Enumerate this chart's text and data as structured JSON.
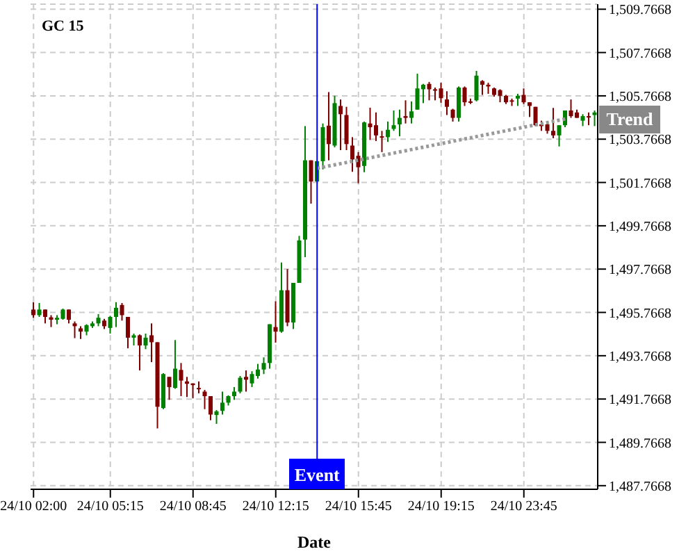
{
  "chart_data": {
    "type": "candlestick",
    "title": "GC 15",
    "xlabel": "Date",
    "categories": [
      "24/10 02:00",
      null,
      null,
      null,
      null,
      null,
      null,
      null,
      null,
      null,
      null,
      null,
      null,
      "24/10 05:15",
      null,
      null,
      null,
      null,
      null,
      null,
      null,
      null,
      null,
      null,
      null,
      null,
      null,
      "24/10 08:45",
      null,
      null,
      null,
      null,
      null,
      null,
      null,
      null,
      null,
      null,
      null,
      null,
      null,
      "24/10 12:15",
      null,
      null,
      null,
      null,
      null,
      null,
      null,
      null,
      null,
      null,
      null,
      null,
      null,
      "24/10 15:45",
      null,
      null,
      null,
      null,
      null,
      null,
      null,
      null,
      null,
      null,
      null,
      null,
      null,
      "24/10 19:15",
      null,
      null,
      null,
      null,
      null,
      null,
      null,
      null,
      null,
      null,
      null,
      null,
      null,
      "24/10 23:45",
      null,
      null,
      null,
      null,
      null,
      null,
      null,
      null,
      null,
      null,
      null,
      null
    ],
    "ohlc": [
      [
        1495.9,
        1496.24,
        1495.52,
        1495.64
      ],
      [
        1495.64,
        1496.2,
        1495.56,
        1495.9
      ],
      [
        1495.9,
        1495.9,
        1495.26,
        1495.56
      ],
      [
        1495.54,
        1495.64,
        1495.09,
        1495.43
      ],
      [
        1495.43,
        1495.64,
        1495.22,
        1495.52
      ],
      [
        1495.47,
        1495.94,
        1495.43,
        1495.9
      ],
      [
        1495.9,
        1495.9,
        1495.26,
        1495.43
      ],
      [
        1495.26,
        1495.35,
        1494.58,
        1495.13
      ],
      [
        1495.03,
        1495.13,
        1494.54,
        1494.88
      ],
      [
        1494.88,
        1495.22,
        1494.71,
        1495.18
      ],
      [
        1495.13,
        1495.35,
        1495.05,
        1495.26
      ],
      [
        1495.26,
        1495.69,
        1495.13,
        1495.52
      ],
      [
        1495.39,
        1495.47,
        1495.0,
        1495.13
      ],
      [
        1495.05,
        1495.6,
        1494.79,
        1495.56
      ],
      [
        1495.56,
        1496.24,
        1495.09,
        1495.98
      ],
      [
        1496.11,
        1496.2,
        1495.39,
        1495.64
      ],
      [
        1495.56,
        1495.56,
        1494.11,
        1494.6
      ],
      [
        1494.6,
        1494.79,
        1494.24,
        1494.71
      ],
      [
        1494.71,
        1494.75,
        1493.09,
        1494.24
      ],
      [
        1494.24,
        1494.79,
        1494.07,
        1494.6
      ],
      [
        1494.71,
        1495.26,
        1493.47,
        1494.39
      ],
      [
        1494.39,
        1494.39,
        1490.41,
        1491.41
      ],
      [
        1491.35,
        1492.96,
        1491.3,
        1492.92
      ],
      [
        1492.79,
        1492.79,
        1491.73,
        1492.32
      ],
      [
        1492.28,
        1494.49,
        1492.24,
        1493.17
      ],
      [
        1493.11,
        1493.43,
        1491.9,
        1492.62
      ],
      [
        1492.58,
        1492.79,
        1491.86,
        1492.47
      ],
      [
        1492.49,
        1492.49,
        1491.81,
        1492.41
      ],
      [
        1492.28,
        1492.58,
        1492.03,
        1492.24
      ],
      [
        1492.11,
        1492.19,
        1491.3,
        1491.9
      ],
      [
        1491.9,
        1491.9,
        1490.79,
        1491.05
      ],
      [
        1491.03,
        1491.26,
        1490.62,
        1491.2
      ],
      [
        1491.22,
        1492.11,
        1491.05,
        1491.6
      ],
      [
        1491.6,
        1491.94,
        1491.47,
        1491.9
      ],
      [
        1491.9,
        1492.32,
        1491.73,
        1492.11
      ],
      [
        1492.11,
        1492.83,
        1492.03,
        1492.75
      ],
      [
        1492.79,
        1493.09,
        1492.11,
        1492.66
      ],
      [
        1492.49,
        1493.05,
        1492.32,
        1492.92
      ],
      [
        1492.83,
        1493.39,
        1492.71,
        1493.13
      ],
      [
        1493.13,
        1493.69,
        1492.92,
        1493.43
      ],
      [
        1493.43,
        1495.22,
        1493.17,
        1495.22
      ],
      [
        1495.09,
        1496.28,
        1494.37,
        1494.88
      ],
      [
        1494.88,
        1498.07,
        1494.83,
        1496.79
      ],
      [
        1496.79,
        1497.77,
        1495.13,
        1495.3
      ],
      [
        1495.3,
        1497.13,
        1495.0,
        1497.13
      ],
      [
        1497.13,
        1499.3,
        1497.13,
        1499.09
      ],
      [
        1499.13,
        1504.37,
        1498.32,
        1502.79
      ],
      [
        1502.79,
        1502.79,
        1500.79,
        1501.81
      ],
      [
        1501.81,
        1502.75,
        1501.81,
        1502.75
      ],
      [
        1502.75,
        1504.49,
        1502.37,
        1504.32
      ],
      [
        1504.39,
        1505.94,
        1502.79,
        1503.54
      ],
      [
        1503.47,
        1505.77,
        1503.39,
        1505.43
      ],
      [
        1505.3,
        1505.6,
        1503.26,
        1504.92
      ],
      [
        1504.88,
        1505.26,
        1503.26,
        1503.54
      ],
      [
        1503.47,
        1503.86,
        1502.26,
        1502.83
      ],
      [
        1503.0,
        1503.17,
        1501.73,
        1502.47
      ],
      [
        1502.53,
        1504.58,
        1502.24,
        1504.54
      ],
      [
        1504.49,
        1505.22,
        1503.73,
        1504.32
      ],
      [
        1504.41,
        1505.0,
        1503.68,
        1503.94
      ],
      [
        1503.9,
        1504.15,
        1503.17,
        1503.86
      ],
      [
        1503.86,
        1504.58,
        1503.64,
        1504.2
      ],
      [
        1504.24,
        1505.09,
        1504.15,
        1504.41
      ],
      [
        1504.45,
        1505.13,
        1503.9,
        1504.75
      ],
      [
        1504.83,
        1505.56,
        1504.49,
        1504.75
      ],
      [
        1504.75,
        1505.51,
        1504.49,
        1505.05
      ],
      [
        1505.13,
        1506.79,
        1505.13,
        1506.11
      ],
      [
        1506.07,
        1506.32,
        1505.43,
        1506.28
      ],
      [
        1506.32,
        1506.41,
        1505.56,
        1506.07
      ],
      [
        1506.07,
        1506.15,
        1505.56,
        1506.02
      ],
      [
        1506.11,
        1506.37,
        1505.45,
        1505.66
      ],
      [
        1505.6,
        1505.98,
        1504.88,
        1505.26
      ],
      [
        1505.13,
        1505.17,
        1504.58,
        1504.75
      ],
      [
        1504.75,
        1506.2,
        1504.58,
        1506.15
      ],
      [
        1506.15,
        1506.2,
        1505.3,
        1505.47
      ],
      [
        1505.51,
        1505.64,
        1505.39,
        1505.47
      ],
      [
        1505.56,
        1506.92,
        1505.51,
        1506.7
      ],
      [
        1506.45,
        1506.49,
        1505.81,
        1506.28
      ],
      [
        1506.28,
        1506.37,
        1505.86,
        1506.2
      ],
      [
        1506.11,
        1506.15,
        1505.73,
        1505.81
      ],
      [
        1506.03,
        1506.07,
        1505.47,
        1505.77
      ],
      [
        1505.77,
        1505.81,
        1505.39,
        1505.47
      ],
      [
        1505.56,
        1505.64,
        1505.3,
        1505.51
      ],
      [
        1505.64,
        1505.86,
        1505.3,
        1505.77
      ],
      [
        1505.81,
        1506.11,
        1505.39,
        1505.47
      ],
      [
        1505.47,
        1505.47,
        1504.79,
        1505.3
      ],
      [
        1505.26,
        1505.26,
        1504.37,
        1504.41
      ],
      [
        1504.45,
        1504.62,
        1504.15,
        1504.37
      ],
      [
        1504.45,
        1504.58,
        1504.02,
        1504.15
      ],
      [
        1504.15,
        1505.21,
        1503.81,
        1503.94
      ],
      [
        1503.94,
        1504.41,
        1503.43,
        1504.41
      ],
      [
        1504.41,
        1505.09,
        1504.32,
        1505.09
      ],
      [
        1505.09,
        1505.6,
        1504.75,
        1504.83
      ],
      [
        1505.0,
        1505.13,
        1504.75,
        1504.75
      ],
      [
        1504.62,
        1504.92,
        1504.37,
        1504.83
      ],
      [
        1504.83,
        1505.0,
        1504.41,
        1504.79
      ],
      [
        1504.88,
        1505.09,
        1504.37,
        1505.0
      ]
    ],
    "colors": [
      "#800000",
      "#008000",
      "#800000",
      "#800000",
      "#008000",
      "#008000",
      "#800000",
      "#800000",
      "#800000",
      "#008000",
      "#008000",
      "#008000",
      "#800000",
      "#008000",
      "#008000",
      "#800000",
      "#800000",
      "#008000",
      "#800000",
      "#008000",
      "#800000",
      "#800000",
      "#008000",
      "#800000",
      "#008000",
      "#800000",
      "#800000",
      "#800000",
      "#800000",
      "#800000",
      "#800000",
      "#008000",
      "#008000",
      "#008000",
      "#008000",
      "#008000",
      "#800000",
      "#008000",
      "#008000",
      "#008000",
      "#008000",
      "#800000",
      "#008000",
      "#800000",
      "#008000",
      "#008000",
      "#008000",
      "#800000",
      "#008000",
      "#008000",
      "#800000",
      "#008000",
      "#800000",
      "#800000",
      "#800000",
      "#800000",
      "#008000",
      "#800000",
      "#800000",
      "#800000",
      "#008000",
      "#008000",
      "#008000",
      "#800000",
      "#008000",
      "#008000",
      "#008000",
      "#800000",
      "#800000",
      "#800000",
      "#800000",
      "#800000",
      "#008000",
      "#800000",
      "#800000",
      "#008000",
      "#800000",
      "#800000",
      "#800000",
      "#800000",
      "#800000",
      "#800000",
      "#008000",
      "#800000",
      "#800000",
      "#800000",
      "#800000",
      "#800000",
      "#800000",
      "#008000",
      "#008000",
      "#800000",
      "#800000",
      "#008000",
      "#800000",
      "#008000"
    ],
    "series": [
      {
        "type": "line",
        "name": "Trend",
        "color": "#999999",
        "line_style": "dotted",
        "values": [
          null,
          null,
          null,
          null,
          null,
          null,
          null,
          null,
          null,
          null,
          null,
          null,
          null,
          null,
          null,
          null,
          null,
          null,
          null,
          null,
          null,
          null,
          null,
          null,
          null,
          null,
          null,
          null,
          null,
          null,
          null,
          null,
          null,
          null,
          null,
          null,
          null,
          null,
          null,
          null,
          null,
          null,
          null,
          null,
          null,
          null,
          null,
          null,
          1502.42,
          null,
          null,
          null,
          null,
          null,
          null,
          null,
          null,
          null,
          null,
          null,
          null,
          null,
          null,
          null,
          null,
          null,
          null,
          null,
          null,
          null,
          null,
          null,
          null,
          null,
          null,
          null,
          null,
          null,
          null,
          null,
          null,
          null,
          null,
          null,
          null,
          null,
          null,
          null,
          null,
          null,
          1504.7,
          null,
          null,
          null,
          null,
          null
        ]
      }
    ],
    "annotations": [
      "Event"
    ],
    "ylim": [
      1487.6,
      1510
    ],
    "yticks": [
      {
        "value": 1487.7668,
        "label": "1,487.7668"
      },
      {
        "value": 1489.7668,
        "label": "1,489.7668"
      },
      {
        "value": 1491.7668,
        "label": "1,491.7668"
      },
      {
        "value": 1493.7668,
        "label": "1,493.7668"
      },
      {
        "value": 1495.7668,
        "label": "1,495.7668"
      },
      {
        "value": 1497.7668,
        "label": "1,497.7668"
      },
      {
        "value": 1499.7668,
        "label": "1,499.7668"
      },
      {
        "value": 1501.7668,
        "label": "1,501.7668"
      },
      {
        "value": 1503.7668,
        "label": "1,503.7668"
      },
      {
        "value": 1505.7668,
        "label": "1,505.7668"
      },
      {
        "value": 1507.7668,
        "label": "1,507.7668"
      },
      {
        "value": 1509.7668,
        "label": "1,509.7668"
      }
    ],
    "grid": true
  }
}
